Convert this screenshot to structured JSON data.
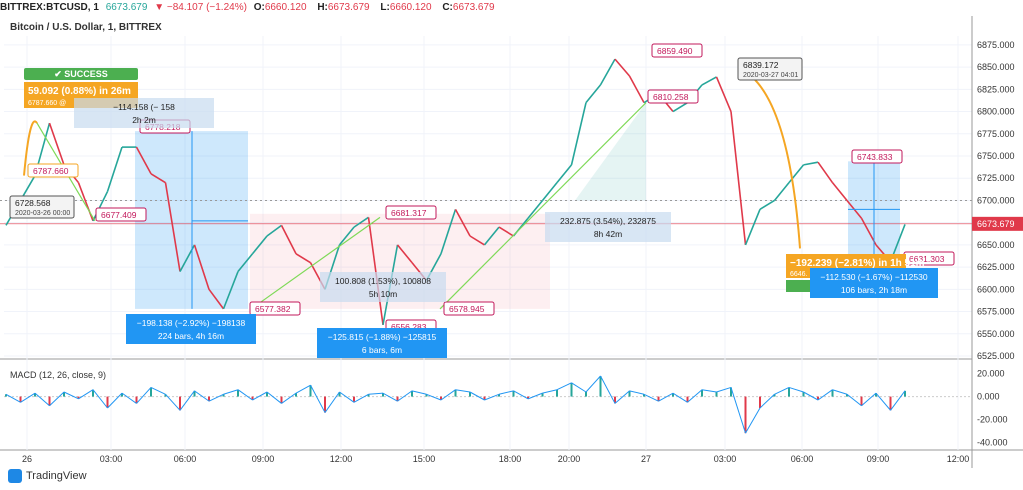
{
  "header": {
    "symbol": "BITTREX:BTCUSD, 1",
    "last": "6673.679",
    "change": "▼ −84.107 (−1.24%)",
    "open_label": "O:",
    "open": "6660.120",
    "high_label": "H:",
    "high": "6673.679",
    "low_label": "L:",
    "low": "6660.120",
    "close_label": "C:",
    "close": "6673.679"
  },
  "chart_title": "Bitcoin / U.S. Dollar, 1, BITTREX",
  "brand": "TradingView",
  "colors": {
    "up": "#26a69a",
    "down": "#e0394a",
    "orange": "#f5a623",
    "green_line": "#7ed957",
    "blue": "#2196f3",
    "pink": "#c2185b"
  },
  "chart_data": [
    {
      "type": "line",
      "title": "Bitcoin / U.S. Dollar, 1, BITTREX",
      "x_ticks": [
        "26",
        "03:00",
        "06:00",
        "09:00",
        "12:00",
        "15:00",
        "18:00",
        "20:00",
        "27",
        "03:00",
        "06:00",
        "09:00",
        "12:00"
      ],
      "y_ticks": [
        "6875.000",
        "6850.000",
        "6825.000",
        "6800.000",
        "6775.000",
        "6750.000",
        "6725.000",
        "6700.000",
        "6675.000",
        "6650.000",
        "6625.000",
        "6600.000",
        "6575.000",
        "6550.000",
        "6525.000"
      ],
      "ylim": [
        6525,
        6885
      ],
      "price_label": "6673.679",
      "series": [
        {
          "values": [
            6672,
            6700,
            6728,
            6787,
            6740,
            6720,
            6677,
            6710,
            6760,
            6760,
            6730,
            6720,
            6620,
            6650,
            6600,
            6578,
            6620,
            6640,
            6660,
            6672,
            6640,
            6630,
            6600,
            6650,
            6670,
            6681,
            6560,
            6650,
            6630,
            6610,
            6640,
            6690,
            6660,
            6650,
            6670,
            6660,
            6680,
            6700,
            6720,
            6740,
            6810,
            6830,
            6859,
            6840,
            6810,
            6820,
            6800,
            6810,
            6830,
            6839,
            6800,
            6650,
            6690,
            6700,
            6720,
            6740,
            6743,
            6720,
            6700,
            6680,
            6650,
            6631,
            6673
          ]
        }
      ],
      "annotations": [
        {
          "text": "6728.568",
          "sub": "2020-03-26 00:00"
        },
        {
          "text": "6787.660"
        },
        {
          "text": "6677.409"
        },
        {
          "text": "6778.218"
        },
        {
          "text": "6577.382"
        },
        {
          "text": "6681.317"
        },
        {
          "text": "6556.283"
        },
        {
          "text": "6578.945"
        },
        {
          "text": "6859.490"
        },
        {
          "text": "6810.258"
        },
        {
          "text": "6839.172",
          "sub": "2020-03-27 04:01"
        },
        {
          "text": "6743.833"
        },
        {
          "text": "6631.303"
        }
      ],
      "range_boxes": [
        {
          "line1": "−114.158 (−",
          "line1b": "158",
          "line2": "2h 2m"
        },
        {
          "line1": "−198.138 (−2.92%) −198138",
          "line2": "224 bars, 4h 16m"
        },
        {
          "line1": "100.808 (1.53%), 100808",
          "line2": "5h 10m"
        },
        {
          "line1": "−125.815 (−1.88%) −125815",
          "line2": "6 bars, 6m"
        },
        {
          "line1": "232.875 (3.54%), 232875",
          "line2": "8h 42m"
        },
        {
          "line1": "−112.530 (−1.67%) −112530",
          "line2": "106 bars, 2h 18m"
        }
      ],
      "success_badge": "SUCCESS",
      "success_box": "59.092 (0.88%) in 26m",
      "success_sub": "6787.660 @",
      "loss_box": "−192.239 (−2.81%) in 1h 51m",
      "loss_sub": "6646."
    },
    {
      "type": "line",
      "title": "MACD (12, 26, close, 9)",
      "y_ticks": [
        "20.000",
        "0.000",
        "-20.000",
        "-40.000"
      ],
      "ylim": [
        -45,
        25
      ],
      "series": [
        {
          "values": [
            2,
            -5,
            3,
            -8,
            4,
            -2,
            6,
            -10,
            3,
            -6,
            8,
            2,
            -12,
            5,
            -4,
            2,
            6,
            -3,
            4,
            -6,
            3,
            10,
            -14,
            4,
            -5,
            2,
            3,
            -4,
            5,
            2,
            -3,
            6,
            4,
            -3,
            2,
            5,
            -2,
            3,
            6,
            12,
            4,
            18,
            -6,
            5,
            2,
            -4,
            3,
            -5,
            6,
            4,
            8,
            -32,
            -10,
            2,
            8,
            4,
            -3,
            6,
            2,
            -8,
            3,
            -12,
            5
          ]
        }
      ]
    }
  ]
}
